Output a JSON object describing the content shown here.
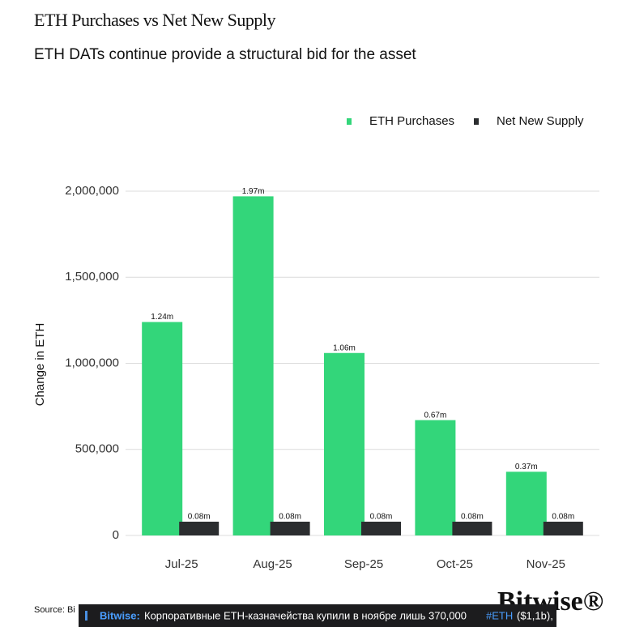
{
  "chart_data": {
    "type": "bar",
    "title": "ETH Purchases vs Net New Supply",
    "subtitle": "ETH DATs continue provide a structural bid for the asset",
    "y_label": "Change in ETH",
    "categories": [
      "Jul-25",
      "Aug-25",
      "Sep-25",
      "Oct-25",
      "Nov-25"
    ],
    "series": [
      {
        "name": "ETH Purchases",
        "color": "#33d67a",
        "values": [
          1240000,
          1970000,
          1060000,
          670000,
          370000
        ],
        "value_labels": [
          "1.24m",
          "1.97m",
          "1.06m",
          "0.67m",
          "0.37m"
        ]
      },
      {
        "name": "Net New Supply",
        "color": "#2b2d2f",
        "values": [
          80000,
          80000,
          80000,
          80000,
          80000
        ],
        "value_labels": [
          "0.08m",
          "0.08m",
          "0.08m",
          "0.08m",
          "0.08m"
        ]
      }
    ],
    "ylim": [
      0,
      2000000
    ],
    "yticks": [
      0,
      {
        "value": 500000,
        "label": "500,000"
      },
      {
        "value": 1000000,
        "label": "1,000,000"
      },
      {
        "value": 1500000,
        "label": "1,500,000"
      },
      {
        "value": 2000000,
        "label": "2,000,000"
      }
    ],
    "grid": true,
    "legend": "top-right",
    "source": "Source: Bi",
    "brand": "Bitwise®"
  },
  "overlay": {
    "account": "Bitwise:",
    "text": "Корпоративные ETH-казначейства купили в ноябре лишь 370,000",
    "tag": "#ETH",
    "tail": "($1,1b),"
  }
}
